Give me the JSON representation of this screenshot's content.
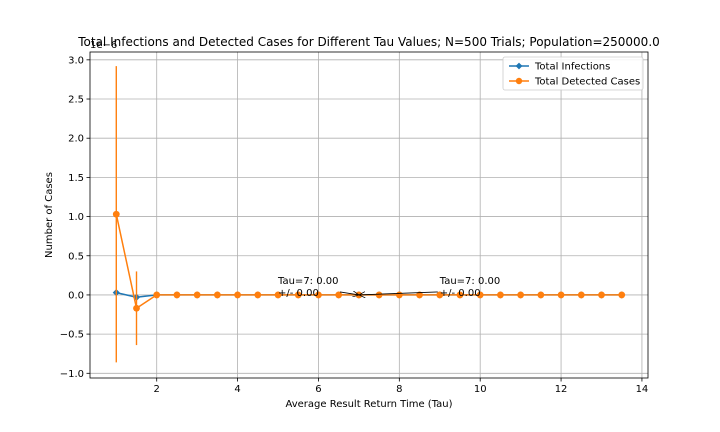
{
  "chart_data": {
    "type": "line",
    "title": "Total Infections and Detected Cases for Different Tau Values; N=500 Trials; Population=250000.0",
    "xlabel": "Average Result Return Time (Tau)",
    "ylabel": "Number of Cases",
    "y_scale_label": "1e−6",
    "xlim": [
      0.35,
      14.15
    ],
    "ylim": [
      -1.06,
      3.1
    ],
    "x_ticks": [
      2,
      4,
      6,
      8,
      10,
      12,
      14
    ],
    "x_tick_labels": [
      "2",
      "4",
      "6",
      "8",
      "10",
      "12",
      "14"
    ],
    "y_ticks": [
      -1.0,
      -0.5,
      0.0,
      0.5,
      1.0,
      1.5,
      2.0,
      2.5,
      3.0
    ],
    "y_tick_labels": [
      "−1.0",
      "−0.5",
      "0.0",
      "0.5",
      "1.0",
      "1.5",
      "2.0",
      "2.5",
      "3.0"
    ],
    "grid": true,
    "legend_position": "top-right",
    "x": [
      1.0,
      1.5,
      2.0,
      2.5,
      3.0,
      3.5,
      4.0,
      4.5,
      5.0,
      5.5,
      6.0,
      6.5,
      7.0,
      7.5,
      8.0,
      8.5,
      9.0,
      9.5,
      10.0,
      10.5,
      11.0,
      11.5,
      12.0,
      12.5,
      13.0,
      13.5
    ],
    "series": [
      {
        "name": "Total Infections",
        "color": "#1f77b4",
        "values": [
          0.03,
          -0.03,
          0,
          0,
          0,
          0,
          0,
          0,
          0,
          0,
          0,
          0,
          0,
          0,
          0,
          0,
          0,
          0,
          0,
          0,
          0,
          0,
          0,
          0,
          0,
          0
        ],
        "errors": [
          0,
          0,
          0,
          0,
          0,
          0,
          0,
          0,
          0,
          0,
          0,
          0,
          0,
          0,
          0,
          0,
          0,
          0,
          0,
          0,
          0,
          0,
          0,
          0,
          0,
          0
        ]
      },
      {
        "name": "Total Detected Cases",
        "color": "#ff7f0e",
        "values": [
          1.03,
          -0.17,
          0,
          0,
          0,
          0,
          0,
          0,
          0,
          0,
          0,
          0,
          0,
          0,
          0,
          0,
          0,
          0,
          0,
          0,
          0,
          0,
          0,
          0,
          0,
          0
        ],
        "errors": [
          1.89,
          0.47,
          0,
          0,
          0,
          0,
          0,
          0,
          0,
          0,
          0,
          0,
          0,
          0,
          0,
          0,
          0,
          0,
          0,
          0,
          0,
          0,
          0,
          0,
          0,
          0
        ]
      }
    ],
    "annotations": [
      {
        "lines": [
          "Tau=7: 0.00",
          "+/- 0.00"
        ],
        "text_xy": [
          5.0,
          0.0
        ],
        "arrow_to": [
          7.0,
          0.0
        ]
      },
      {
        "lines": [
          "Tau=7: 0.00",
          "+/- 0.00"
        ],
        "text_xy": [
          9.0,
          0.0
        ],
        "arrow_to": [
          7.0,
          0.0
        ]
      }
    ]
  }
}
